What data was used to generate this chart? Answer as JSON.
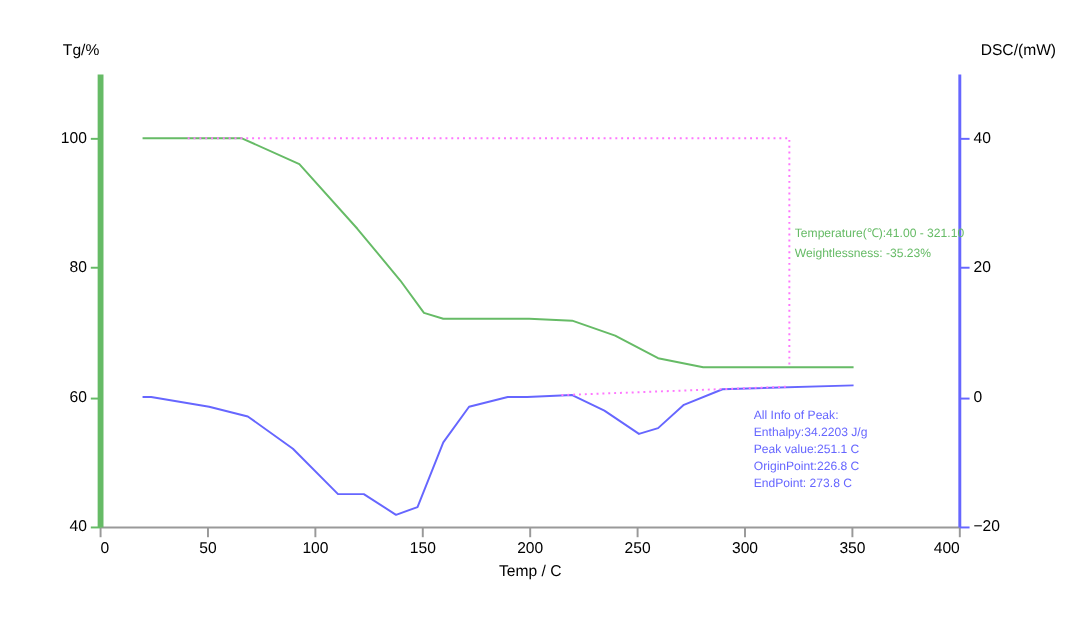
{
  "chart_data": {
    "type": "line",
    "xlabel": "Temp / C",
    "ylabel": "Tg/%",
    "y2label": "DSC/(mW)",
    "xlim": [
      0,
      400
    ],
    "xticks": [
      0,
      50,
      100,
      150,
      200,
      250,
      300,
      350,
      400
    ],
    "ylim": [
      40,
      110
    ],
    "yticks": [
      40,
      60,
      80,
      100
    ],
    "y2lim": [
      -20,
      50
    ],
    "y2ticks": [
      -20,
      0,
      20,
      40
    ],
    "grid": false,
    "marker": "none",
    "series": [
      {
        "color": "#66bb66",
        "line_style": "solid",
        "x": [
          20,
          41,
          66,
          93,
          120,
          140,
          151,
          160,
          200,
          220,
          240,
          260,
          281,
          300,
          351
        ],
        "values": [
          100,
          100,
          100,
          96,
          86,
          78,
          73,
          72.1,
          72.1,
          71.8,
          69.5,
          66,
          64.6,
          64.6,
          64.6
        ]
      },
      {
        "color": "#ff77ff",
        "line_style": "dotted",
        "x": [
          41,
          321.1,
          321.1
        ],
        "values": [
          100,
          100,
          64.6
        ]
      },
      {
        "color": "#6666ff",
        "line_style": "solid",
        "axis": "y2",
        "x": [
          20,
          24,
          51,
          69,
          90,
          111,
          123,
          138,
          148,
          160,
          172,
          190,
          199,
          220,
          235,
          251.1,
          260,
          272,
          290,
          351
        ],
        "values": [
          0,
          0,
          -1.5,
          -3,
          -8,
          -15,
          -15,
          -18.2,
          -17,
          -7,
          -1.5,
          0,
          0,
          0.3,
          -2.1,
          -5.7,
          -4.8,
          -1.2,
          1.2,
          1.8
        ]
      },
      {
        "color": "#ff77ff",
        "line_style": "dotted",
        "axis": "y2",
        "x": [
          215,
          320
        ],
        "values": [
          0.3,
          1.6
        ]
      }
    ],
    "annotations": [
      "Temperature(℃):41.00 - 321.10",
      "Weightlessness: -35.23%",
      "All Info of Peak:",
      "Enthalpy:34.2203 J/g",
      "Peak value:251.1 C",
      "OriginPoint:226.8 C",
      "EndPoint: 273.8 C"
    ]
  }
}
